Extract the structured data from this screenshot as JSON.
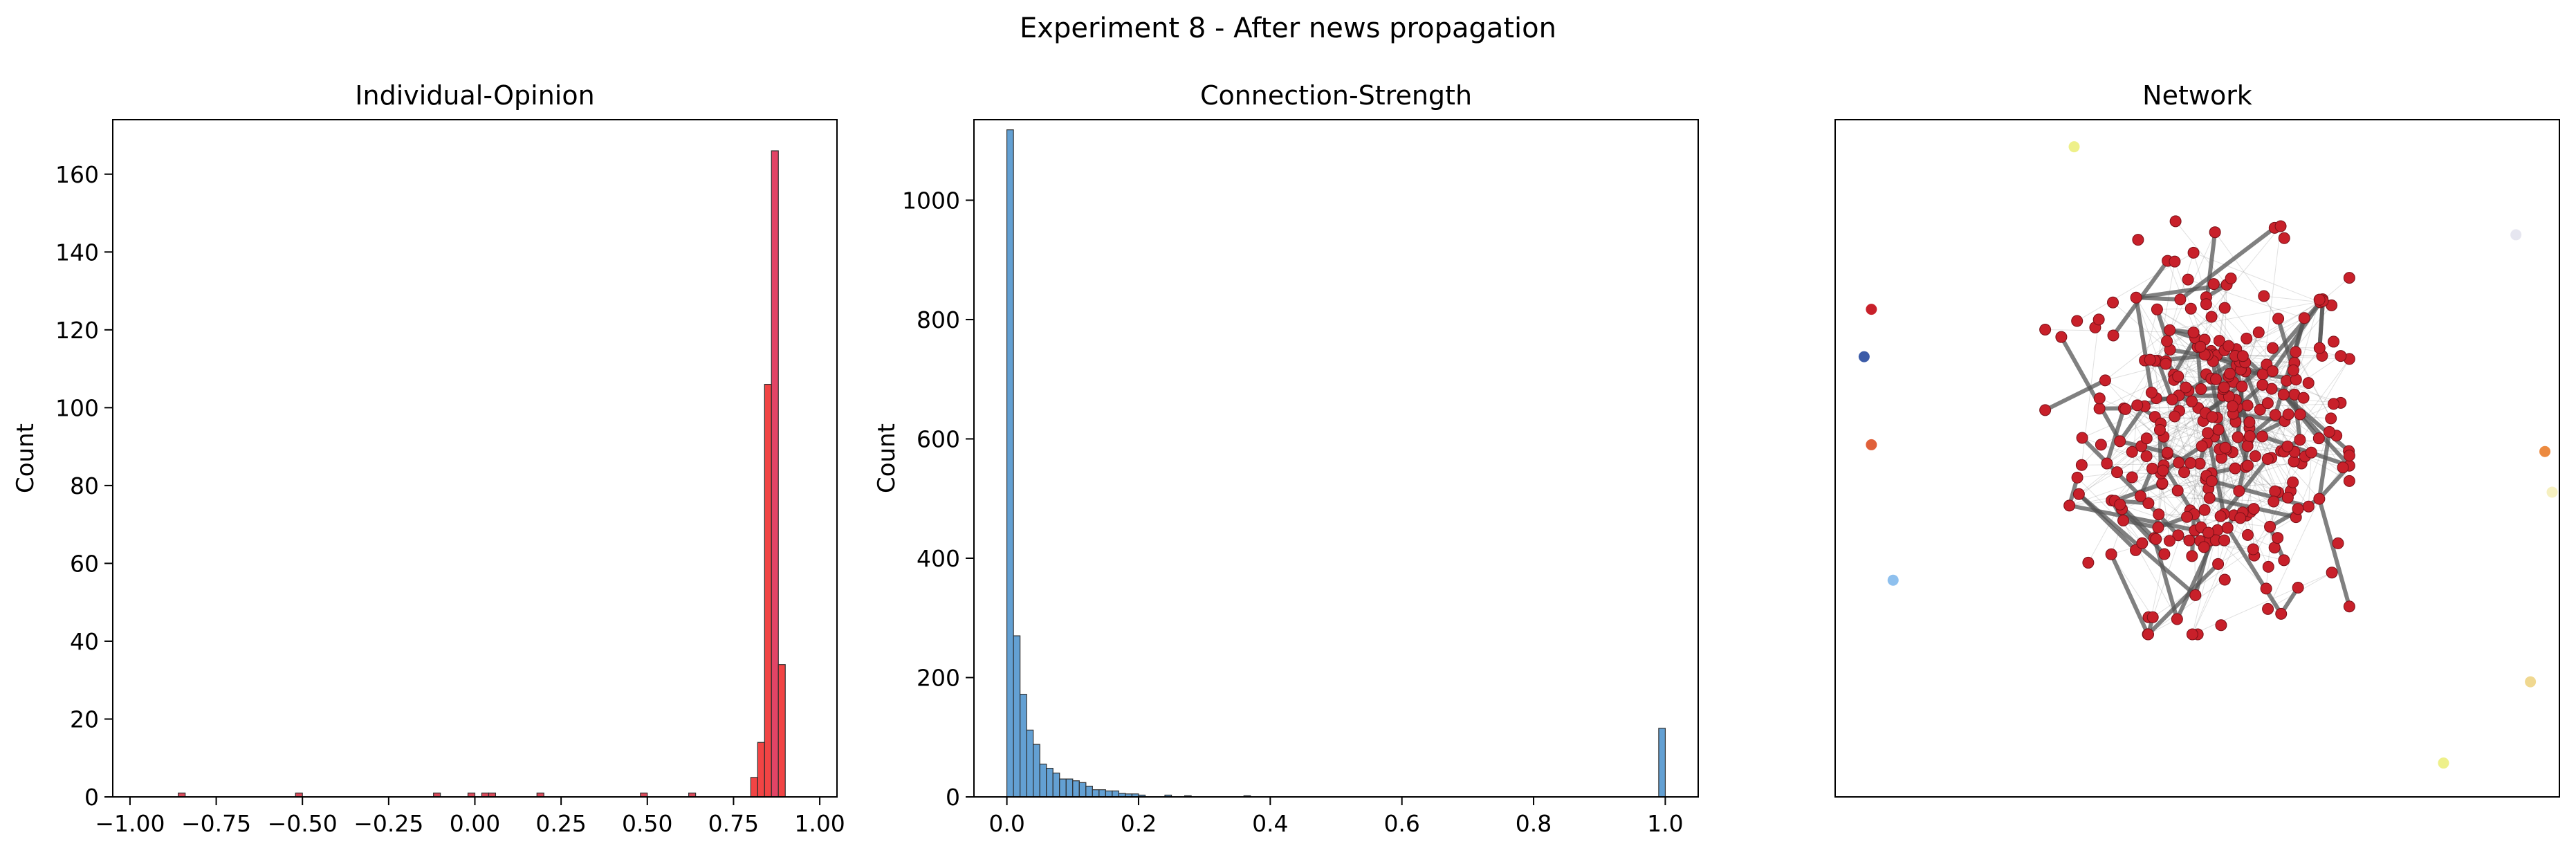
{
  "figure_title": "Experiment 8 - After news propagation",
  "chart_data": [
    {
      "type": "bar",
      "title": "Individual-Opinion",
      "xlabel": "",
      "ylabel": "Count",
      "xlim": [
        -1.05,
        1.05
      ],
      "ylim": [
        0,
        174
      ],
      "xticks": [
        -1.0,
        -0.75,
        -0.5,
        -0.25,
        0.0,
        0.25,
        0.5,
        0.75,
        1.0
      ],
      "xtick_labels": [
        "−1.00",
        "−0.75",
        "−0.50",
        "−0.25",
        "0.00",
        "0.25",
        "0.50",
        "0.75",
        "1.00"
      ],
      "yticks": [
        0,
        20,
        40,
        60,
        80,
        100,
        120,
        140,
        160
      ],
      "ytick_labels": [
        "0",
        "20",
        "40",
        "60",
        "80",
        "100",
        "120",
        "140",
        "160"
      ],
      "bin_width": 0.02,
      "bars": [
        {
          "x": -0.86,
          "value": 1,
          "color": "#d94052"
        },
        {
          "x": -0.52,
          "value": 1,
          "color": "#d94052"
        },
        {
          "x": -0.12,
          "value": 1,
          "color": "#d94052"
        },
        {
          "x": -0.02,
          "value": 1,
          "color": "#d94052"
        },
        {
          "x": 0.02,
          "value": 1,
          "color": "#d94052"
        },
        {
          "x": 0.04,
          "value": 1,
          "color": "#d94052"
        },
        {
          "x": 0.18,
          "value": 1,
          "color": "#d94052"
        },
        {
          "x": 0.48,
          "value": 1,
          "color": "#d94052"
        },
        {
          "x": 0.62,
          "value": 1,
          "color": "#d94052"
        },
        {
          "x": 0.8,
          "value": 5,
          "color": "#f03a3a"
        },
        {
          "x": 0.82,
          "value": 14,
          "color": "#f03a3a"
        },
        {
          "x": 0.84,
          "value": 106,
          "color": "#f03a3a"
        },
        {
          "x": 0.86,
          "value": 166,
          "color": "#e03a5e"
        },
        {
          "x": 0.88,
          "value": 34,
          "color": "#f03a3a"
        }
      ]
    },
    {
      "type": "bar",
      "title": "Connection-Strength",
      "xlabel": "",
      "ylabel": "Count",
      "xlim": [
        -0.05,
        1.05
      ],
      "ylim": [
        0,
        1135
      ],
      "xticks": [
        0.0,
        0.2,
        0.4,
        0.6,
        0.8,
        1.0
      ],
      "xtick_labels": [
        "0.0",
        "0.2",
        "0.4",
        "0.6",
        "0.8",
        "1.0"
      ],
      "yticks": [
        0,
        200,
        400,
        600,
        800,
        1000
      ],
      "ytick_labels": [
        "0",
        "200",
        "400",
        "600",
        "800",
        "1000"
      ],
      "bin_width": 0.01,
      "color": "#5b9bd1",
      "x": [
        0.0,
        0.01,
        0.02,
        0.03,
        0.04,
        0.05,
        0.06,
        0.07,
        0.08,
        0.09,
        0.1,
        0.11,
        0.12,
        0.13,
        0.14,
        0.15,
        0.16,
        0.17,
        0.18,
        0.19,
        0.2,
        0.24,
        0.27,
        0.36,
        0.99
      ],
      "values": [
        1118,
        270,
        172,
        112,
        88,
        55,
        48,
        40,
        30,
        30,
        27,
        24,
        18,
        12,
        12,
        10,
        10,
        6,
        5,
        5,
        3,
        3,
        2,
        2,
        115
      ]
    },
    {
      "type": "scatter",
      "title": "Network",
      "xlabel": "",
      "ylabel": "",
      "node_color": "#c8202a",
      "edge_color": "#555555",
      "outlier_nodes": [
        {
          "x": 0.33,
          "y": 0.96,
          "color": "#eef08a"
        },
        {
          "x": 0.94,
          "y": 0.83,
          "color": "#e6e6f0"
        },
        {
          "x": 0.05,
          "y": 0.72,
          "color": "#c8202a"
        },
        {
          "x": 0.04,
          "y": 0.65,
          "color": "#3b5ba8"
        },
        {
          "x": 0.05,
          "y": 0.52,
          "color": "#e0603a"
        },
        {
          "x": 0.98,
          "y": 0.51,
          "color": "#ec8a40"
        },
        {
          "x": 0.99,
          "y": 0.45,
          "color": "#f6f0c0"
        },
        {
          "x": 0.08,
          "y": 0.32,
          "color": "#8ec0ee"
        },
        {
          "x": 0.96,
          "y": 0.17,
          "color": "#f0d890"
        },
        {
          "x": 0.84,
          "y": 0.05,
          "color": "#eef08a"
        }
      ]
    }
  ]
}
